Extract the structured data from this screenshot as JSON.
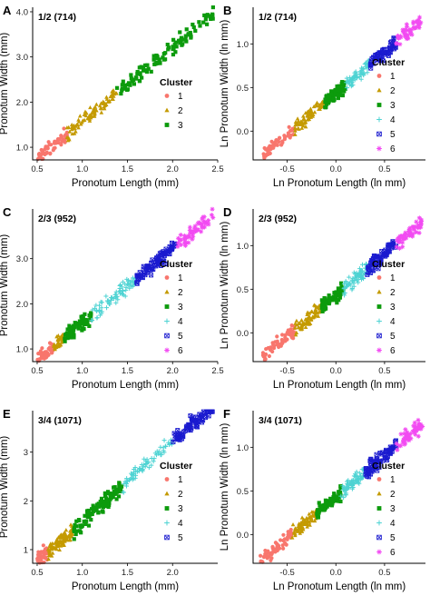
{
  "cluster_colors": {
    "1": "#F8766D",
    "2": "#C49A00",
    "3": "#0C9B0C",
    "4": "#4ED3D3",
    "5": "#1A1ACF",
    "6": "#F24BF2"
  },
  "cluster_markers": {
    "1": "circle",
    "2": "triangle",
    "3": "square",
    "4": "plus",
    "5": "boxed-x",
    "6": "asterisk"
  },
  "chart_data": [
    {
      "type": "scatter",
      "panel_letter": "A",
      "title": "1/2 (714)",
      "xlabel": "Pronotum Length (mm)",
      "ylabel": "Pronotum Width (mm)",
      "xlim": [
        0.45,
        2.5
      ],
      "ylim": [
        0.72,
        4.1
      ],
      "xticks": [
        0.5,
        1.0,
        1.5,
        2.0,
        2.5
      ],
      "xtick_labels": [
        "0.5",
        "1.0",
        "1.5",
        "2.0",
        "2.5"
      ],
      "yticks": [
        1.0,
        2.0,
        3.0,
        4.0
      ],
      "ytick_labels": [
        "1.0",
        "2.0",
        "3.0",
        "4.0"
      ],
      "legend_title": "Cluster",
      "legend_position": "right",
      "legend": [
        "1",
        "2",
        "3"
      ],
      "relation": {
        "slope": 1.65,
        "intercept": -0.08,
        "scatter": 0.1
      },
      "series": [
        {
          "name": "1",
          "x_range": [
            0.5,
            0.83
          ],
          "n": 60
        },
        {
          "name": "2",
          "x_range": [
            0.83,
            1.38
          ],
          "n": 90
        },
        {
          "name": "3",
          "x_range": [
            1.38,
            2.45
          ],
          "n": 110
        }
      ]
    },
    {
      "type": "scatter",
      "panel_letter": "B",
      "title": "1/2 (714)",
      "xlabel": "Ln Pronotum Length (ln mm)",
      "ylabel": "Ln Pronotum Width (ln mm)",
      "xlim": [
        -0.85,
        0.92
      ],
      "ylim": [
        -0.33,
        1.42
      ],
      "xticks": [
        -0.5,
        0.0,
        0.5
      ],
      "xtick_labels": [
        "-0.5",
        "0.0",
        "0.5"
      ],
      "yticks": [
        0.0,
        0.5,
        1.0
      ],
      "ytick_labels": [
        "0.0",
        "0.5",
        "1.0"
      ],
      "legend_title": "Cluster",
      "legend_position": "right",
      "legend": [
        "1",
        "2",
        "3",
        "4",
        "5",
        "6"
      ],
      "relation": {
        "slope": 0.95,
        "intercept": 0.43,
        "scatter": 0.05
      },
      "series": [
        {
          "name": "1",
          "x_range": [
            -0.75,
            -0.42
          ],
          "n": 55
        },
        {
          "name": "2",
          "x_range": [
            -0.42,
            -0.12
          ],
          "n": 70
        },
        {
          "name": "3",
          "x_range": [
            -0.12,
            0.1
          ],
          "n": 70
        },
        {
          "name": "4",
          "x_range": [
            0.1,
            0.35
          ],
          "n": 60
        },
        {
          "name": "5",
          "x_range": [
            0.35,
            0.62
          ],
          "n": 60
        },
        {
          "name": "6",
          "x_range": [
            0.62,
            0.88
          ],
          "n": 50
        }
      ]
    },
    {
      "type": "scatter",
      "panel_letter": "C",
      "title": "2/3 (952)",
      "xlabel": "Pronotum Length (mm)",
      "ylabel": "Pronotum Width (mm)",
      "xlim": [
        0.45,
        2.5
      ],
      "ylim": [
        0.72,
        4.1
      ],
      "xticks": [
        0.5,
        1.0,
        1.5,
        2.0,
        2.5
      ],
      "xtick_labels": [
        "0.5",
        "1.0",
        "1.5",
        "2.0",
        "2.5"
      ],
      "yticks": [
        1.0,
        2.0,
        3.0
      ],
      "ytick_labels": [
        "1.0",
        "2.0",
        "3.0"
      ],
      "legend_title": "Cluster",
      "legend_position": "right",
      "legend": [
        "1",
        "2",
        "3",
        "4",
        "5",
        "6"
      ],
      "relation": {
        "slope": 1.65,
        "intercept": -0.08,
        "scatter": 0.1
      },
      "series": [
        {
          "name": "1",
          "x_range": [
            0.5,
            0.68
          ],
          "n": 45
        },
        {
          "name": "2",
          "x_range": [
            0.68,
            0.8
          ],
          "n": 40
        },
        {
          "name": "3",
          "x_range": [
            0.8,
            1.1
          ],
          "n": 70
        },
        {
          "name": "4",
          "x_range": [
            1.1,
            1.6
          ],
          "n": 80
        },
        {
          "name": "5",
          "x_range": [
            1.6,
            2.05
          ],
          "n": 80
        },
        {
          "name": "6",
          "x_range": [
            2.05,
            2.45
          ],
          "n": 60
        }
      ]
    },
    {
      "type": "scatter",
      "panel_letter": "D",
      "title": "2/3 (952)",
      "xlabel": "Ln Pronotum Length (ln mm)",
      "ylabel": "Ln Pronotum Width (ln mm)",
      "xlim": [
        -0.85,
        0.92
      ],
      "ylim": [
        -0.33,
        1.42
      ],
      "xticks": [
        -0.5,
        0.0,
        0.5
      ],
      "xtick_labels": [
        "-0.5",
        "0.0",
        "0.5"
      ],
      "yticks": [
        0.0,
        0.5,
        1.0
      ],
      "ytick_labels": [
        "0.0",
        "0.5",
        "1.0"
      ],
      "legend_title": "Cluster",
      "legend_position": "right",
      "legend": [
        "1",
        "2",
        "3",
        "4",
        "5",
        "6"
      ],
      "relation": {
        "slope": 0.95,
        "intercept": 0.43,
        "scatter": 0.05
      },
      "series": [
        {
          "name": "1",
          "x_range": [
            -0.75,
            -0.42
          ],
          "n": 60
        },
        {
          "name": "2",
          "x_range": [
            -0.42,
            -0.15
          ],
          "n": 70
        },
        {
          "name": "3",
          "x_range": [
            -0.15,
            0.08
          ],
          "n": 75
        },
        {
          "name": "4",
          "x_range": [
            0.08,
            0.32
          ],
          "n": 70
        },
        {
          "name": "5",
          "x_range": [
            0.32,
            0.62
          ],
          "n": 70
        },
        {
          "name": "6",
          "x_range": [
            0.62,
            0.88
          ],
          "n": 55
        }
      ]
    },
    {
      "type": "scatter",
      "panel_letter": "E",
      "title": "3/4 (1071)",
      "xlabel": "Pronotum Length (mm)",
      "ylabel": "Pronotum Width (mm)",
      "xlim": [
        0.45,
        2.5
      ],
      "ylim": [
        0.72,
        3.85
      ],
      "xticks": [
        0.5,
        1.0,
        1.5,
        2.0
      ],
      "xtick_labels": [
        "0.5",
        "1.0",
        "1.5",
        "2.0"
      ],
      "yticks": [
        1,
        2,
        3
      ],
      "ytick_labels": [
        "1",
        "2",
        "3"
      ],
      "legend_title": "Cluster",
      "legend_position": "right",
      "legend": [
        "1",
        "2",
        "3",
        "4",
        "5"
      ],
      "relation": {
        "slope": 1.65,
        "intercept": -0.08,
        "scatter": 0.1
      },
      "series": [
        {
          "name": "1",
          "x_range": [
            0.5,
            0.62
          ],
          "n": 40
        },
        {
          "name": "2",
          "x_range": [
            0.62,
            0.9
          ],
          "n": 90
        },
        {
          "name": "3",
          "x_range": [
            0.9,
            1.45
          ],
          "n": 110
        },
        {
          "name": "4",
          "x_range": [
            1.45,
            2.0
          ],
          "n": 70
        },
        {
          "name": "5",
          "x_range": [
            2.0,
            2.45
          ],
          "n": 70
        }
      ]
    },
    {
      "type": "scatter",
      "panel_letter": "F",
      "title": "3/4 (1071)",
      "xlabel": "Ln Pronotum Length (ln mm)",
      "ylabel": "Ln Pronotum Width (ln mm)",
      "xlim": [
        -0.85,
        0.92
      ],
      "ylim": [
        -0.33,
        1.42
      ],
      "xticks": [
        -0.5,
        0.0,
        0.5
      ],
      "xtick_labels": [
        "-0.5",
        "0.0",
        "0.5"
      ],
      "yticks": [
        0.0,
        0.5,
        1.0
      ],
      "ytick_labels": [
        "0.0",
        "0.5",
        "1.0"
      ],
      "legend_title": "Cluster",
      "legend_position": "right",
      "legend": [
        "1",
        "2",
        "3",
        "4",
        "5",
        "6"
      ],
      "relation": {
        "slope": 0.95,
        "intercept": 0.43,
        "scatter": 0.05
      },
      "series": [
        {
          "name": "1",
          "x_range": [
            -0.78,
            -0.45
          ],
          "n": 60
        },
        {
          "name": "2",
          "x_range": [
            -0.45,
            -0.2
          ],
          "n": 70
        },
        {
          "name": "3",
          "x_range": [
            -0.2,
            0.05
          ],
          "n": 75
        },
        {
          "name": "4",
          "x_range": [
            0.05,
            0.3
          ],
          "n": 70
        },
        {
          "name": "5",
          "x_range": [
            0.3,
            0.62
          ],
          "n": 75
        },
        {
          "name": "6",
          "x_range": [
            0.62,
            0.9
          ],
          "n": 55
        }
      ]
    }
  ]
}
